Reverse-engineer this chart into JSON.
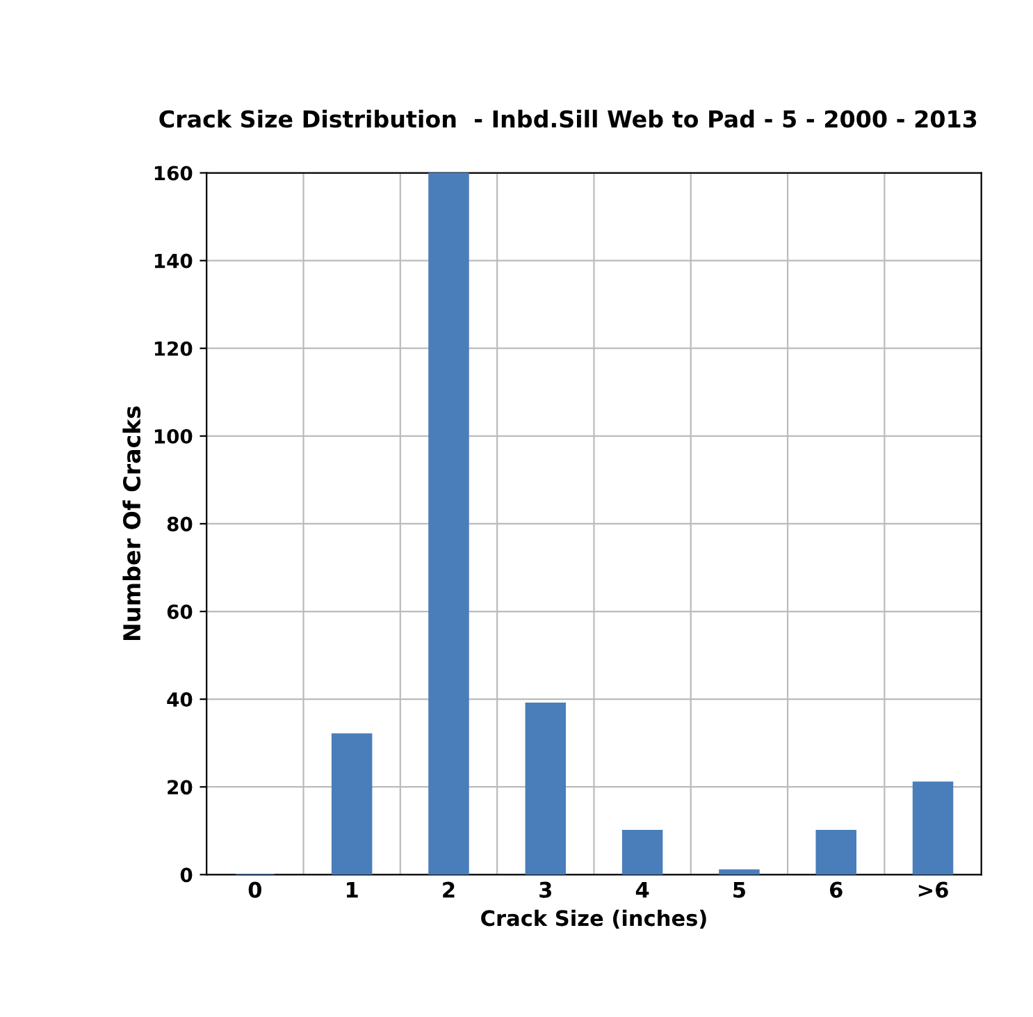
{
  "chart_data": {
    "type": "bar",
    "title": "Crack Size Distribution  - Inbd.Sill Web to Pad - 5 - 2000 - 2013",
    "xlabel": "Crack Size (inches)",
    "ylabel": "Number Of Cracks",
    "categories": [
      "0",
      "1",
      "2",
      "3",
      "4",
      "5",
      "6",
      ">6"
    ],
    "values": [
      0,
      32,
      160,
      39,
      10,
      1,
      10,
      21
    ],
    "color": "#4a7ebb",
    "ylim": [
      0,
      160
    ],
    "yticks": [
      0,
      20,
      40,
      60,
      80,
      100,
      120,
      140,
      160
    ],
    "grid": true,
    "legend": false
  }
}
